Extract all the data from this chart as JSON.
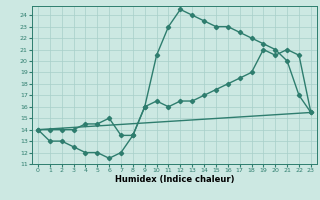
{
  "line1_x": [
    0,
    1,
    2,
    3,
    4,
    5,
    6,
    7,
    8,
    9,
    10,
    11,
    12,
    13,
    14,
    15,
    16,
    17,
    18,
    19,
    20,
    21,
    22,
    23
  ],
  "line1_y": [
    14.0,
    13.0,
    13.0,
    12.5,
    12.0,
    12.0,
    11.5,
    12.0,
    13.5,
    16.0,
    20.5,
    23.0,
    24.5,
    24.0,
    23.5,
    23.0,
    23.0,
    22.5,
    22.0,
    21.5,
    21.0,
    20.0,
    17.0,
    15.5
  ],
  "line2_x": [
    0,
    1,
    2,
    3,
    4,
    5,
    6,
    7,
    8,
    9,
    10,
    11,
    12,
    13,
    14,
    15,
    16,
    17,
    18,
    19,
    20,
    21,
    22,
    23
  ],
  "line2_y": [
    14.0,
    14.0,
    14.0,
    14.0,
    14.5,
    14.5,
    15.0,
    13.5,
    13.5,
    16.0,
    16.5,
    16.0,
    16.5,
    16.5,
    17.0,
    17.5,
    18.0,
    18.5,
    19.0,
    21.0,
    20.5,
    21.0,
    20.5,
    15.5
  ],
  "line3_x": [
    0,
    23
  ],
  "line3_y": [
    14.0,
    15.5
  ],
  "color": "#2e7d6e",
  "bg_color": "#cce8e2",
  "grid_color": "#a8cfc9",
  "xlabel": "Humidex (Indice chaleur)",
  "xlim": [
    -0.5,
    23.5
  ],
  "ylim": [
    11,
    24.8
  ],
  "yticks": [
    11,
    12,
    13,
    14,
    15,
    16,
    17,
    18,
    19,
    20,
    21,
    22,
    23,
    24
  ],
  "xticks": [
    0,
    1,
    2,
    3,
    4,
    5,
    6,
    7,
    8,
    9,
    10,
    11,
    12,
    13,
    14,
    15,
    16,
    17,
    18,
    19,
    20,
    21,
    22,
    23
  ],
  "marker": "D",
  "marker_size": 2.2,
  "line_width": 1.0
}
